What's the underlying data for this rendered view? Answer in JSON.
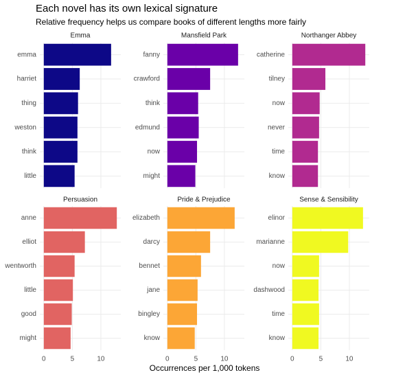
{
  "title": "Each novel has its own lexical signature",
  "subtitle": "Relative frequency helps us compare books of different lengths more fairly",
  "xlabel": "Occurrences per 1,000 tokens",
  "chart_data": [
    {
      "type": "bar",
      "title": "Emma",
      "categories": [
        "emma",
        "harriet",
        "thing",
        "weston",
        "think",
        "little"
      ],
      "values": [
        11.8,
        6.3,
        6.0,
        5.9,
        5.9,
        5.4
      ],
      "color": "#0d0887",
      "xlim": [
        -0.7,
        13.5
      ],
      "xticks": [
        0,
        5,
        10
      ],
      "grid": true,
      "xtick_labels": false
    },
    {
      "type": "bar",
      "title": "Mansfield Park",
      "categories": [
        "fanny",
        "crawford",
        "think",
        "edmund",
        "now",
        "might"
      ],
      "values": [
        12.4,
        7.5,
        5.4,
        5.5,
        5.2,
        4.9
      ],
      "color": "#6a00a8",
      "xlim": [
        -0.7,
        13.5
      ],
      "xticks": [
        0,
        5,
        10
      ],
      "grid": true,
      "xtick_labels": false
    },
    {
      "type": "bar",
      "title": "Northanger Abbey",
      "categories": [
        "catherine",
        "tilney",
        "now",
        "never",
        "time",
        "know"
      ],
      "values": [
        12.8,
        5.8,
        4.8,
        4.7,
        4.5,
        4.5
      ],
      "color": "#b12a90",
      "xlim": [
        -0.7,
        13.5
      ],
      "xticks": [
        0,
        5,
        10
      ],
      "grid": true,
      "xtick_labels": false
    },
    {
      "type": "bar",
      "title": "Persuasion",
      "categories": [
        "anne",
        "elliot",
        "wentworth",
        "little",
        "good",
        "might"
      ],
      "values": [
        12.8,
        7.2,
        5.4,
        5.1,
        4.9,
        4.7
      ],
      "color": "#e16462",
      "xlim": [
        -0.7,
        13.5
      ],
      "xticks": [
        0,
        5,
        10
      ],
      "grid": true,
      "xtick_labels": true
    },
    {
      "type": "bar",
      "title": "Pride & Prejudice",
      "categories": [
        "elizabeth",
        "darcy",
        "bennet",
        "jane",
        "bingley",
        "know"
      ],
      "values": [
        11.8,
        7.5,
        5.9,
        5.3,
        5.2,
        4.8
      ],
      "color": "#fca636",
      "xlim": [
        -0.7,
        13.5
      ],
      "xticks": [
        0,
        5,
        10
      ],
      "grid": true,
      "xtick_labels": true
    },
    {
      "type": "bar",
      "title": "Sense & Sensibility",
      "categories": [
        "elinor",
        "marianne",
        "now",
        "dashwood",
        "time",
        "know"
      ],
      "values": [
        12.4,
        9.8,
        4.7,
        4.6,
        4.7,
        4.6
      ],
      "color": "#f0f921",
      "xlim": [
        -0.7,
        13.5
      ],
      "xticks": [
        0,
        5,
        10
      ],
      "grid": true,
      "xtick_labels": true
    }
  ]
}
